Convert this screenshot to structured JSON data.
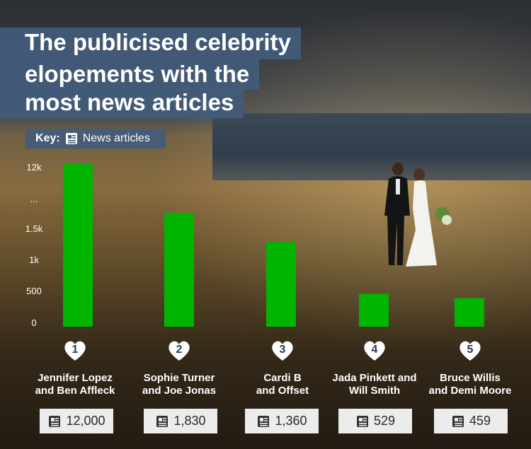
{
  "title_lines": [
    "The publicised celebrity",
    "elopements with the",
    "most news articles"
  ],
  "key": {
    "label": "Key:",
    "item": "News articles",
    "icon": "newspaper-icon"
  },
  "colors": {
    "bar": "#00b400",
    "panel": "#425c7c",
    "value_box": "#ececec",
    "heart": "#ffffff"
  },
  "chart_data": {
    "type": "bar",
    "title": "The publicised celebrity elopements with the most news articles",
    "categories": [
      "Jennifer Lopez and Ben Affleck",
      "Sophie Turner and Joe Jonas",
      "Cardi B and Offset",
      "Jada Pinkett and Will Smith",
      "Bruce Willis and Demi Moore"
    ],
    "series": [
      {
        "name": "News articles",
        "values": [
          12000,
          1830,
          1360,
          529,
          459
        ]
      }
    ],
    "y_ticks": [
      "0",
      "500",
      "1k",
      "1.5k",
      "...",
      "12k"
    ],
    "axis_break": true,
    "ylim": [
      0,
      12000
    ],
    "grid": false
  },
  "items": [
    {
      "rank": "1",
      "line1": "Jennifer Lopez",
      "line2": "and Ben Affleck",
      "value_label": "12,000"
    },
    {
      "rank": "2",
      "line1": "Sophie Turner",
      "line2": "and Joe Jonas",
      "value_label": "1,830"
    },
    {
      "rank": "3",
      "line1": "Cardi B",
      "line2": "and Offset",
      "value_label": "1,360"
    },
    {
      "rank": "4",
      "line1": "Jada Pinkett and",
      "line2": "Will Smith",
      "value_label": "529"
    },
    {
      "rank": "5",
      "line1": "Bruce Willis",
      "line2": "and Demi Moore",
      "value_label": "459"
    }
  ]
}
